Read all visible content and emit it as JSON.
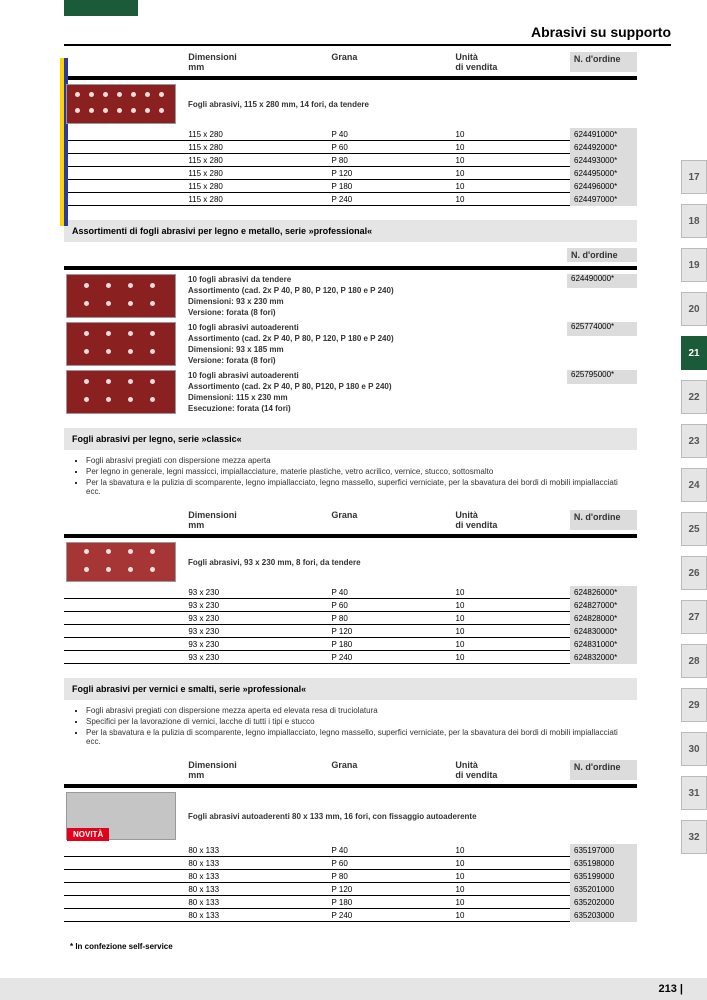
{
  "header": {
    "title": "Abrasivi su supporto"
  },
  "columns": {
    "dim": "Dimensioni",
    "dim_unit": "mm",
    "grit": "Grana",
    "unit": "Unità",
    "unit2": "di vendita",
    "order": "N. d'ordine"
  },
  "section1": {
    "caption": "Fogli abrasivi, 115 x 280 mm, 14 fori, da tendere",
    "rows": [
      {
        "dim": "115 x 280",
        "grit": "P 40",
        "unit": "10",
        "order": "624491000*"
      },
      {
        "dim": "115 x 280",
        "grit": "P 60",
        "unit": "10",
        "order": "624492000*"
      },
      {
        "dim": "115 x 280",
        "grit": "P 80",
        "unit": "10",
        "order": "624493000*"
      },
      {
        "dim": "115 x 280",
        "grit": "P 120",
        "unit": "10",
        "order": "624495000*"
      },
      {
        "dim": "115 x 280",
        "grit": "P 180",
        "unit": "10",
        "order": "624496000*"
      },
      {
        "dim": "115 x 280",
        "grit": "P 240",
        "unit": "10",
        "order": "624497000*"
      }
    ]
  },
  "section2": {
    "title": "Assortimenti di fogli abrasivi per legno e metallo, serie »professional«",
    "items": [
      {
        "text1": "10 fogli abrasivi da tendere",
        "text2": "Assortimento (cad. 2x P 40, P 80, P 120, P 180 e P 240)",
        "text3": "Dimensioni: 93 x 230 mm",
        "text4": "Versione: forata (8 fori)",
        "order": "624490000*"
      },
      {
        "text1": "10 fogli abrasivi autoaderenti",
        "text2": "Assortimento (cad. 2x P 40, P 80, P 120, P 180 e P 240)",
        "text3": "Dimensioni: 93 x 185 mm",
        "text4": "Versione: forata (8 fori)",
        "order": "625774000*"
      },
      {
        "text1": "10 fogli abrasivi autoaderenti",
        "text2": "Assortimento (cad. 2x P 40, P 80, P120, P 180 e P 240)",
        "text3": "Dimensioni: 115 x 230 mm",
        "text4": "Esecuzione: forata (14 fori)",
        "order": "625795000*"
      }
    ]
  },
  "section3": {
    "title": "Fogli abrasivi per legno, serie »classic«",
    "bullets": [
      "Fogli abrasivi pregiati con dispersione mezza aperta",
      "Per legno in generale, legni massicci, impiallacciature, materie plastiche, vetro acrilico, vernice, stucco, sottosmalto",
      "Per la sbavatura e la pulizia di scomparente, legno impiallacciato, legno massello, superfici verniciate, per la sbavatura dei bordi di mobili impiallacciati ecc."
    ],
    "caption": "Fogli abrasivi, 93 x 230 mm, 8 fori, da tendere",
    "rows": [
      {
        "dim": "93 x 230",
        "grit": "P 40",
        "unit": "10",
        "order": "624826000*"
      },
      {
        "dim": "93 x 230",
        "grit": "P 60",
        "unit": "10",
        "order": "624827000*"
      },
      {
        "dim": "93 x 230",
        "grit": "P 80",
        "unit": "10",
        "order": "624828000*"
      },
      {
        "dim": "93 x 230",
        "grit": "P 120",
        "unit": "10",
        "order": "624830000*"
      },
      {
        "dim": "93 x 230",
        "grit": "P 180",
        "unit": "10",
        "order": "624831000*"
      },
      {
        "dim": "93 x 230",
        "grit": "P 240",
        "unit": "10",
        "order": "624832000*"
      }
    ]
  },
  "section4": {
    "title": "Fogli abrasivi per vernici e smalti, serie »professional«",
    "bullets": [
      "Fogli abrasivi pregiati con dispersione mezza aperta ed elevata resa di truciolatura",
      "Specifici per la lavorazione di vernici, lacche di tutti i tipi e stucco",
      "Per la sbavatura e la pulizia di scomparente, legno impiallacciato, legno massello, superfici verniciate, per la sbavatura dei bordi di mobili impiallacciati ecc."
    ],
    "caption": "Fogli abrasivi autoaderenti 80 x 133 mm, 16 fori, con fissaggio autoaderente",
    "novita": "NOVITÀ",
    "rows": [
      {
        "dim": "80 x 133",
        "grit": "P 40",
        "unit": "10",
        "order": "635197000"
      },
      {
        "dim": "80 x 133",
        "grit": "P 60",
        "unit": "10",
        "order": "635198000"
      },
      {
        "dim": "80 x 133",
        "grit": "P 80",
        "unit": "10",
        "order": "635199000"
      },
      {
        "dim": "80 x 133",
        "grit": "P 120",
        "unit": "10",
        "order": "635201000"
      },
      {
        "dim": "80 x 133",
        "grit": "P 180",
        "unit": "10",
        "order": "635202000"
      },
      {
        "dim": "80 x 133",
        "grit": "P 240",
        "unit": "10",
        "order": "635203000"
      }
    ]
  },
  "tabs": [
    "17",
    "18",
    "19",
    "20",
    "21",
    "22",
    "23",
    "24",
    "25",
    "26",
    "27",
    "28",
    "29",
    "30",
    "31",
    "32"
  ],
  "active_tab": "21",
  "footnote": "* In confezione self-service",
  "page_num": "213 |"
}
